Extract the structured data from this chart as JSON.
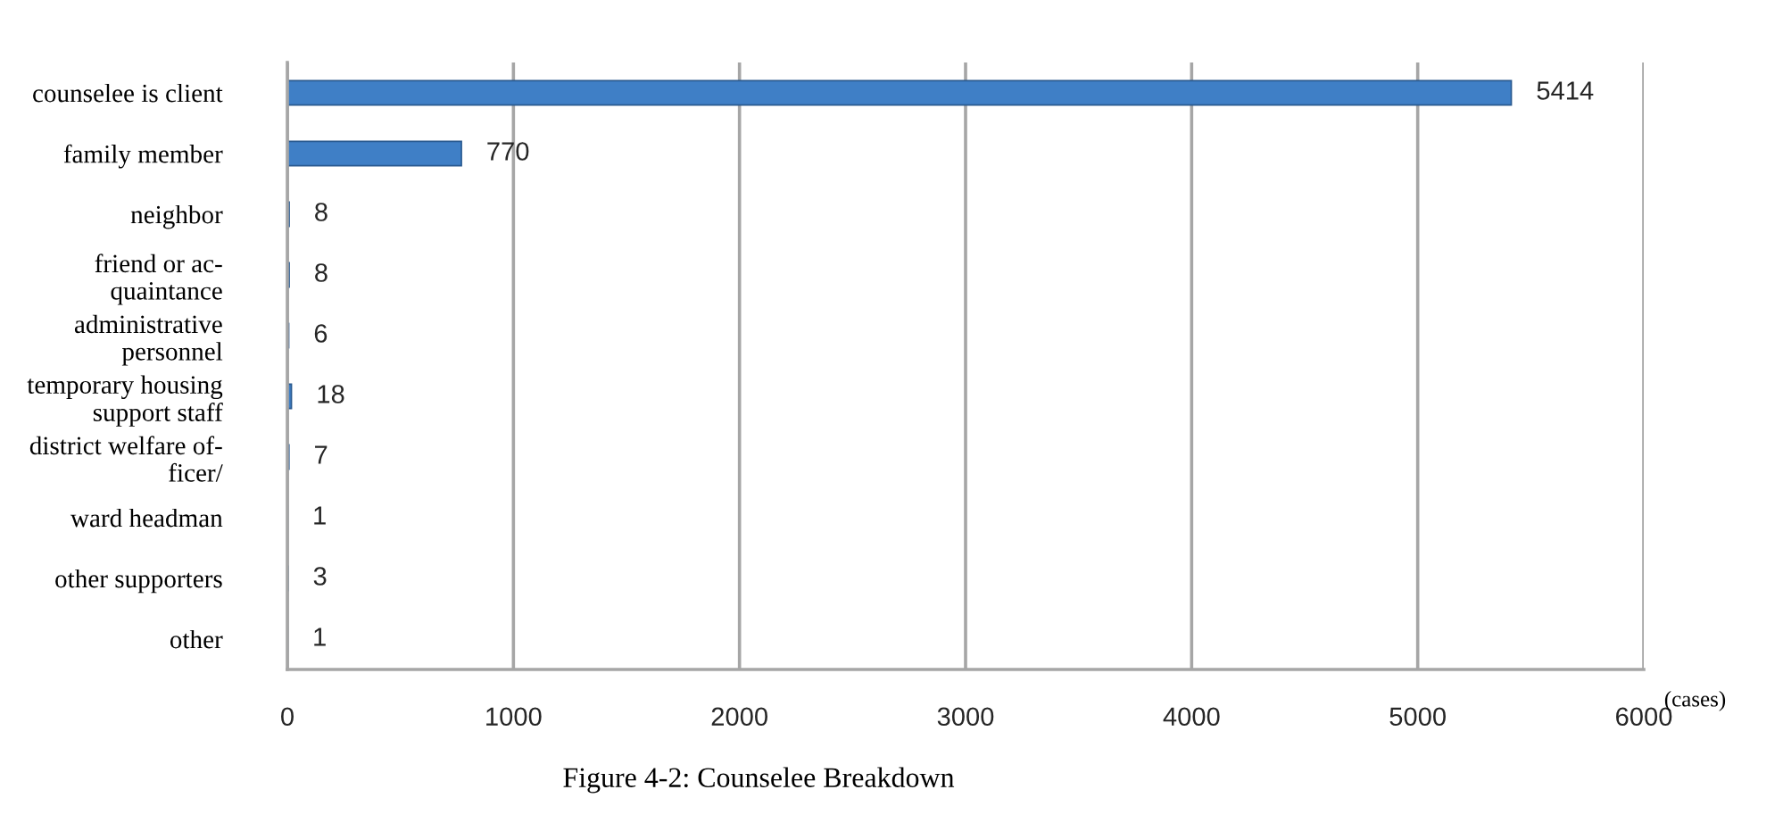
{
  "chart_data": {
    "type": "bar",
    "orientation": "horizontal",
    "title": "Figure 4-2: Counselee Breakdown",
    "xlabel": "(cases)",
    "categories": [
      "counselee is client",
      "family member",
      "neighbor",
      "friend or ac-\nquaintance",
      "administrative\npersonnel",
      "temporary housing\nsupport staff",
      "district welfare of-\nficer/",
      "ward headman",
      "other supporters",
      "other"
    ],
    "values": [
      5414,
      770,
      8,
      8,
      6,
      18,
      7,
      1,
      3,
      1
    ],
    "color": "#3f7fc6",
    "xlim": [
      0,
      6000
    ],
    "xticks": [
      0,
      1000,
      2000,
      3000,
      4000,
      5000,
      6000
    ],
    "grid": "x",
    "data_labels": true
  }
}
